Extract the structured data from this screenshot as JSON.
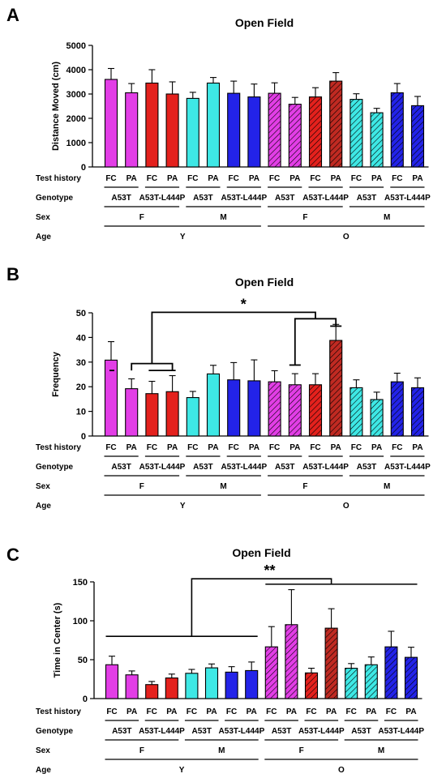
{
  "chart_data": [
    {
      "type": "bar",
      "panel": "A",
      "title": "Open Field",
      "ylabel": "Distance Moved (cm)",
      "ylim": [
        0,
        5000
      ],
      "yticks": [
        0,
        1000,
        2000,
        3000,
        4000,
        5000
      ],
      "values": [
        3600,
        3050,
        3450,
        3000,
        2820,
        3450,
        3030,
        2880,
        3030,
        2580,
        2880,
        3530,
        2780,
        2230,
        3050,
        2520
      ],
      "errors": [
        450,
        380,
        550,
        500,
        250,
        230,
        500,
        530,
        430,
        280,
        380,
        350,
        230,
        180,
        380,
        380
      ],
      "significance": []
    },
    {
      "type": "bar",
      "panel": "B",
      "title": "Open Field",
      "ylabel": "Frequency",
      "ylim": [
        0,
        50
      ],
      "yticks": [
        0,
        10,
        20,
        30,
        40,
        50
      ],
      "values": [
        30.8,
        19.2,
        17.2,
        18.0,
        15.6,
        25.2,
        22.8,
        22.4,
        22.0,
        20.8,
        20.8,
        38.8,
        19.6,
        14.8,
        22.0,
        19.6
      ],
      "errors": [
        7.5,
        4.0,
        5.0,
        6.5,
        2.5,
        3.5,
        7.0,
        8.5,
        4.5,
        4.5,
        4.5,
        6.5,
        3.2,
        3.0,
        3.5,
        4.0
      ],
      "significance": [
        {
          "label": "*"
        }
      ]
    },
    {
      "type": "bar",
      "panel": "C",
      "title": "Open Field",
      "ylabel": "Time in Center (s)",
      "ylim": [
        0,
        150
      ],
      "yticks": [
        0,
        50,
        100,
        150
      ],
      "values": [
        43.5,
        30.5,
        18.0,
        26.5,
        32.5,
        39.5,
        34.0,
        36.0,
        66.5,
        95.0,
        33.0,
        90.5,
        39.0,
        43.5,
        66.5,
        53.0
      ],
      "errors": [
        11.0,
        5.0,
        4.0,
        5.0,
        5.0,
        5.0,
        7.0,
        11.0,
        26.0,
        45.0,
        6.0,
        25.0,
        6.0,
        10.0,
        20.0,
        13.0
      ],
      "significance": [
        {
          "label": "**"
        }
      ]
    }
  ],
  "labels": {
    "row_test": "Test history",
    "row_geno": "Genotype",
    "row_sex": "Sex",
    "row_age": "Age"
  },
  "groups": {
    "test_history": [
      "FC",
      "PA",
      "FC",
      "PA",
      "FC",
      "PA",
      "FC",
      "PA",
      "FC",
      "PA",
      "FC",
      "PA",
      "FC",
      "PA",
      "FC",
      "PA"
    ],
    "genotype": [
      "A53T",
      "A53T-L444P",
      "A53T",
      "A53T-L444P",
      "A53T",
      "A53T-L444P",
      "A53T",
      "A53T-L444P"
    ],
    "sex": [
      "F",
      "M",
      "F",
      "M"
    ],
    "age": [
      "Y",
      "O"
    ]
  },
  "colors": {
    "magenta": "#e23ee6",
    "red": "#e4211d",
    "cyan": "#3ee8e5",
    "blue": "#2323e8",
    "dark_red": "#c02a22"
  },
  "bar_colors": [
    "#e23ee6",
    "#e23ee6",
    "#e4211d",
    "#e4211d",
    "#3ee8e5",
    "#3ee8e5",
    "#2323e8",
    "#2323e8",
    "#e23ee6",
    "#e23ee6",
    "#e4211d",
    "#c02a22",
    "#3ee8e5",
    "#3ee8e5",
    "#2323e8",
    "#2323e8"
  ],
  "bar_hatched": [
    false,
    false,
    false,
    false,
    false,
    false,
    false,
    false,
    true,
    true,
    true,
    true,
    true,
    true,
    true,
    true
  ]
}
